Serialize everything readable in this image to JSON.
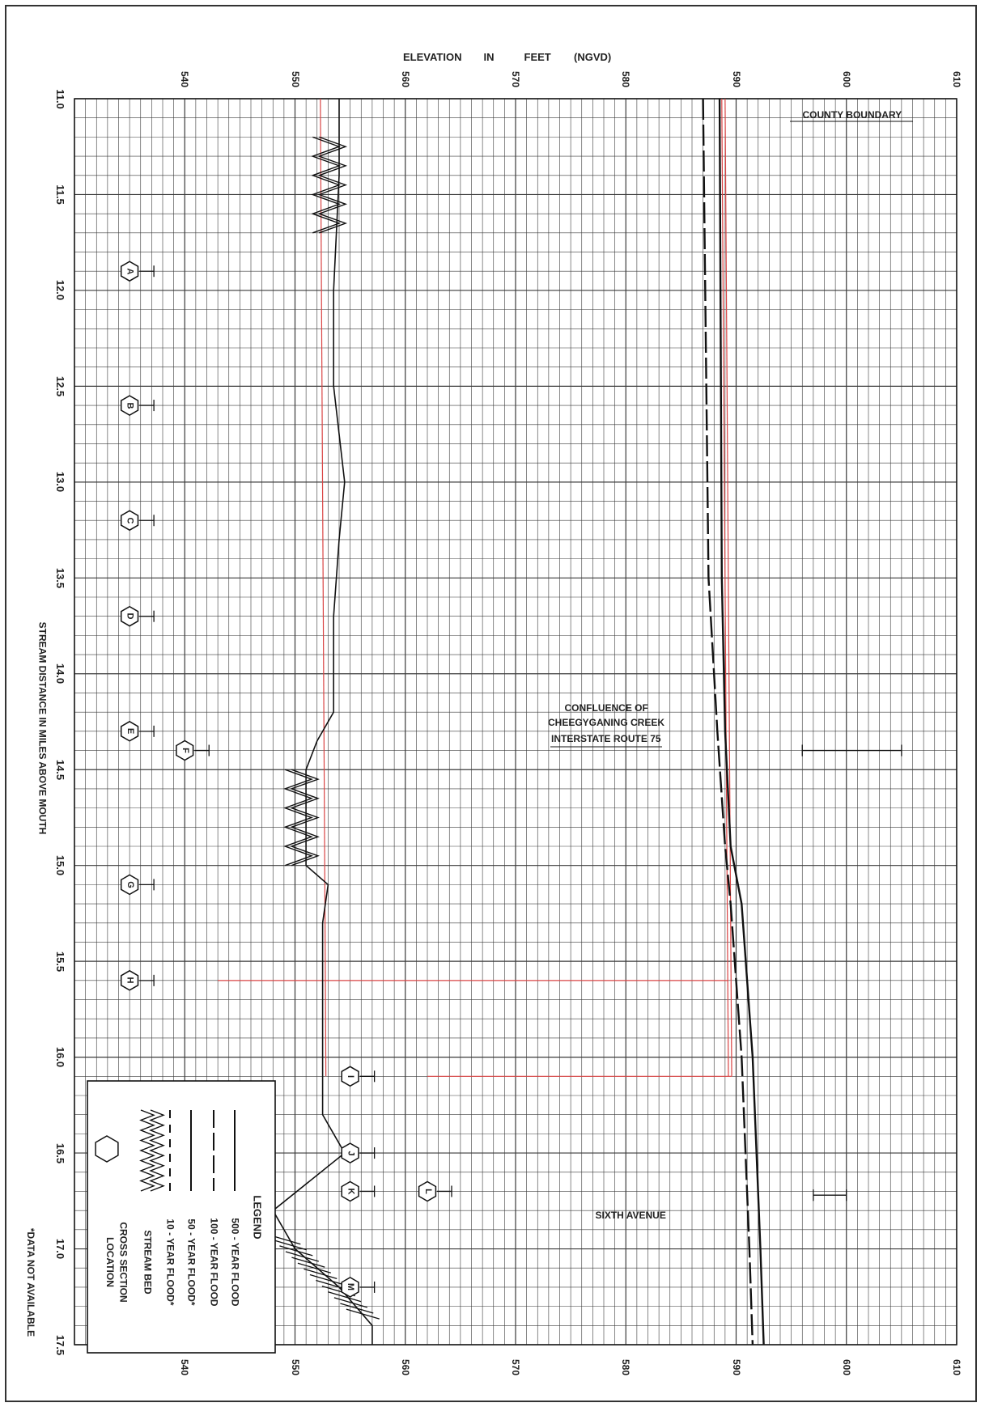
{
  "chart_data": {
    "type": "line",
    "title": "",
    "elevation_axis_label": "ELEVATION IN FEET (NGVD)",
    "elevation_label_parts": [
      "ELEVATION",
      "IN",
      "FEET",
      "(NGVD)"
    ],
    "distance_axis_label": "STREAM DISTANCE IN MILES ABOVE MOUTH",
    "footnote": "*DATA NOT AVAILABLE",
    "distance_range": [
      11.0,
      17.5
    ],
    "elevation_range": [
      530,
      610
    ],
    "distance_ticks": [
      "11.0",
      "11.5",
      "12.0",
      "12.5",
      "13.0",
      "13.5",
      "14.0",
      "14.5",
      "15.0",
      "15.5",
      "16.0",
      "16.5",
      "17.0",
      "17.5"
    ],
    "elevation_ticks": [
      "540",
      "550",
      "560",
      "570",
      "580",
      "590",
      "600",
      "610"
    ],
    "grid": true,
    "series": [
      {
        "name": "500 - YEAR FLOOD",
        "style": "solid",
        "x": [
          11.0,
          13.5,
          14.3,
          14.9,
          15.2,
          16.0,
          17.0,
          17.5
        ],
        "y": [
          588.5,
          588.7,
          589.0,
          589.5,
          590.5,
          591.5,
          592.2,
          592.5
        ]
      },
      {
        "name": "100 - YEAR FLOOD",
        "style": "solid-long-dash",
        "x": [
          11.0,
          13.5,
          14.3,
          14.9,
          15.2,
          16.0,
          17.0,
          17.5
        ],
        "y": [
          587.0,
          587.5,
          588.3,
          589.0,
          589.5,
          590.5,
          591.2,
          591.5
        ]
      },
      {
        "name": "50 - YEAR FLOOD*",
        "style": "solid",
        "x": [],
        "y": []
      },
      {
        "name": "10 - YEAR FLOOD*",
        "style": "dashed",
        "x": [],
        "y": []
      },
      {
        "name": "STREAM BED",
        "style": "bed",
        "x": [
          11.0,
          11.4,
          12.0,
          12.5,
          13.0,
          13.3,
          13.7,
          14.2,
          14.35,
          14.5,
          15.0,
          15.1,
          15.3,
          15.9,
          16.3,
          16.5,
          16.8,
          17.0,
          17.2,
          17.4,
          17.5
        ],
        "y": [
          554,
          554,
          553.5,
          553.5,
          554.5,
          554,
          553.5,
          553.5,
          552,
          551,
          551,
          553,
          552.5,
          552.5,
          552.5,
          554.5,
          548,
          550,
          554,
          557,
          557
        ]
      }
    ],
    "cross_sections": [
      {
        "label": "A",
        "x": 11.9,
        "offset": "near"
      },
      {
        "label": "B",
        "x": 12.6,
        "offset": "near"
      },
      {
        "label": "C",
        "x": 13.2,
        "offset": "near"
      },
      {
        "label": "D",
        "x": 13.7,
        "offset": "near"
      },
      {
        "label": "E",
        "x": 14.3,
        "offset": "near"
      },
      {
        "label": "F",
        "x": 14.4,
        "offset": "mid"
      },
      {
        "label": "G",
        "x": 15.1,
        "offset": "near"
      },
      {
        "label": "H",
        "x": 15.6,
        "offset": "near"
      },
      {
        "label": "I",
        "x": 16.1,
        "offset": "far"
      },
      {
        "label": "J",
        "x": 16.5,
        "offset": "far"
      },
      {
        "label": "K",
        "x": 16.7,
        "offset": "far"
      },
      {
        "label": "L",
        "x": 16.7,
        "offset": "farther"
      },
      {
        "label": "M",
        "x": 17.2,
        "offset": "far"
      }
    ],
    "annotations": [
      {
        "text": "COUNTY BOUNDARY",
        "x": 11.1
      },
      {
        "text": "CONFLUENCE OF",
        "x": 14.2
      },
      {
        "text": "CHEEGYGANING CREEK",
        "x": 14.3
      },
      {
        "text": "INTERSTATE ROUTE 75",
        "x": 14.4
      },
      {
        "text": "SIXTH AVENUE",
        "x": 16.7
      }
    ],
    "legend": {
      "title": "LEGEND",
      "placement": "bottom-left",
      "items": [
        "500 - YEAR FLOOD",
        "100 - YEAR FLOOD",
        "50 - YEAR FLOOD*",
        "10 - YEAR FLOOD*",
        "STREAM BED",
        "CROSS SECTION",
        "LOCATION"
      ]
    },
    "colors": {
      "grid": "#3a3a3a",
      "red_lines": "#d94444",
      "profile": "#111111"
    }
  }
}
